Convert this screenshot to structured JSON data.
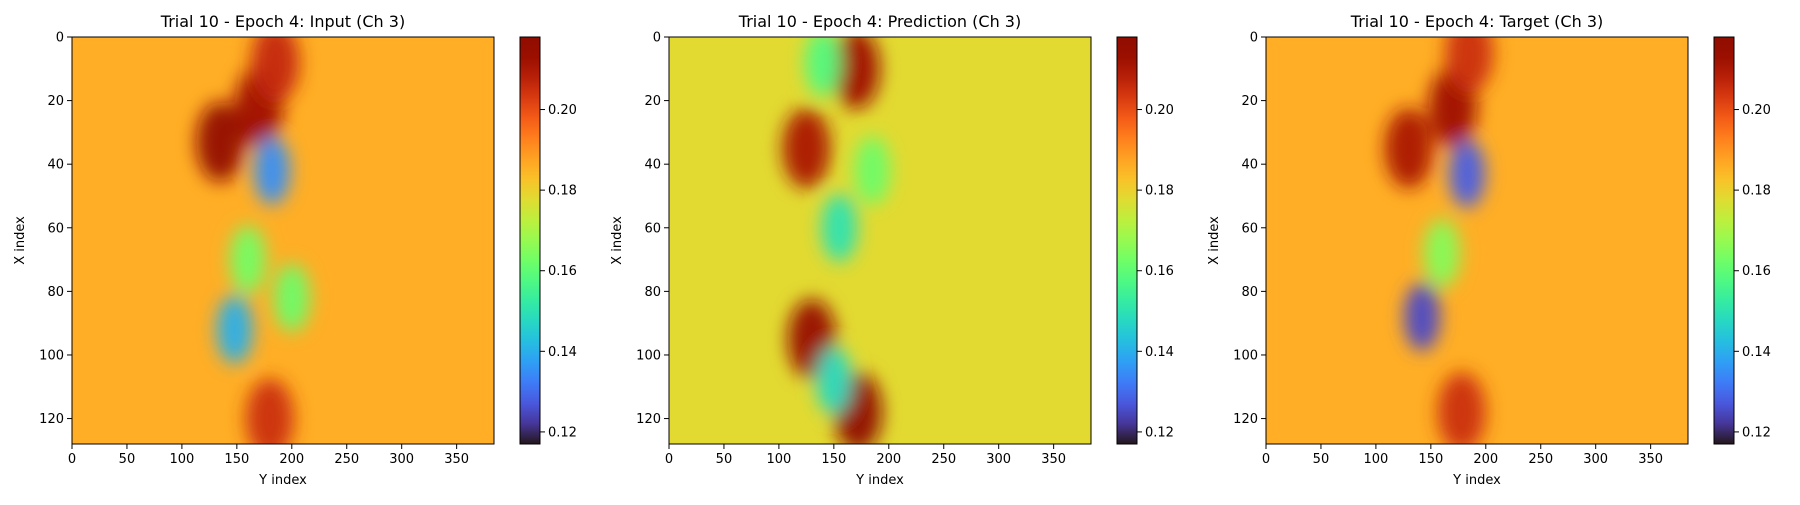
{
  "chart_data": [
    {
      "type": "heatmap",
      "title": "Trial 10 - Epoch 4: Input (Ch 3)",
      "xlabel": "Y index",
      "ylabel": "X index",
      "xticks": [
        0,
        50,
        100,
        150,
        200,
        250,
        300,
        350
      ],
      "yticks": [
        0,
        20,
        40,
        60,
        80,
        100,
        120
      ],
      "xlim": [
        0,
        384
      ],
      "ylim": [
        128,
        0
      ],
      "colormap": "turbo",
      "colorbar": {
        "min": 0.117,
        "max": 0.218,
        "ticks": [
          0.12,
          0.14,
          0.16,
          0.18,
          0.2
        ],
        "tick_labels": [
          "0.12",
          "0.14",
          "0.16",
          "0.18",
          "0.20"
        ]
      },
      "background_value": 0.186,
      "features": [
        {
          "kind": "high",
          "x": 170,
          "y": 22,
          "value": 0.212
        },
        {
          "kind": "high",
          "x": 135,
          "y": 33,
          "value": 0.215
        },
        {
          "kind": "high",
          "x": 185,
          "y": 8,
          "value": 0.206
        },
        {
          "kind": "high",
          "x": 180,
          "y": 120,
          "value": 0.205
        },
        {
          "kind": "low",
          "x": 182,
          "y": 42,
          "value": 0.135
        },
        {
          "kind": "low",
          "x": 148,
          "y": 92,
          "value": 0.14
        },
        {
          "kind": "low",
          "x": 160,
          "y": 70,
          "value": 0.163
        },
        {
          "kind": "low",
          "x": 200,
          "y": 82,
          "value": 0.162
        }
      ]
    },
    {
      "type": "heatmap",
      "title": "Trial 10 - Epoch 4: Prediction (Ch 3)",
      "xlabel": "Y index",
      "ylabel": "X index",
      "xticks": [
        0,
        50,
        100,
        150,
        200,
        250,
        300,
        350
      ],
      "yticks": [
        0,
        20,
        40,
        60,
        80,
        100,
        120
      ],
      "xlim": [
        0,
        384
      ],
      "ylim": [
        128,
        0
      ],
      "colormap": "turbo",
      "colorbar": {
        "min": 0.117,
        "max": 0.218,
        "ticks": [
          0.12,
          0.14,
          0.16,
          0.18,
          0.2
        ],
        "tick_labels": [
          "0.12",
          "0.14",
          "0.16",
          "0.18",
          "0.20"
        ]
      },
      "background_value": 0.178,
      "features": [
        {
          "kind": "high",
          "x": 125,
          "y": 35,
          "value": 0.21
        },
        {
          "kind": "high",
          "x": 170,
          "y": 10,
          "value": 0.212
        },
        {
          "kind": "high",
          "x": 130,
          "y": 95,
          "value": 0.214
        },
        {
          "kind": "high",
          "x": 172,
          "y": 118,
          "value": 0.218
        },
        {
          "kind": "low",
          "x": 155,
          "y": 60,
          "value": 0.15
        },
        {
          "kind": "low",
          "x": 140,
          "y": 8,
          "value": 0.158
        },
        {
          "kind": "low",
          "x": 150,
          "y": 108,
          "value": 0.148
        },
        {
          "kind": "low",
          "x": 185,
          "y": 42,
          "value": 0.162
        }
      ]
    },
    {
      "type": "heatmap",
      "title": "Trial 10 - Epoch 4: Target (Ch 3)",
      "xlabel": "Y index",
      "ylabel": "X index",
      "xticks": [
        0,
        50,
        100,
        150,
        200,
        250,
        300,
        350
      ],
      "yticks": [
        0,
        20,
        40,
        60,
        80,
        100,
        120
      ],
      "xlim": [
        0,
        384
      ],
      "ylim": [
        128,
        0
      ],
      "colormap": "turbo",
      "colorbar": {
        "min": 0.117,
        "max": 0.218,
        "ticks": [
          0.12,
          0.14,
          0.16,
          0.18,
          0.2
        ],
        "tick_labels": [
          "0.12",
          "0.14",
          "0.16",
          "0.18",
          "0.20"
        ]
      },
      "background_value": 0.186,
      "features": [
        {
          "kind": "high",
          "x": 170,
          "y": 22,
          "value": 0.212
        },
        {
          "kind": "high",
          "x": 130,
          "y": 35,
          "value": 0.21
        },
        {
          "kind": "high",
          "x": 185,
          "y": 5,
          "value": 0.205
        },
        {
          "kind": "high",
          "x": 178,
          "y": 118,
          "value": 0.205
        },
        {
          "kind": "low",
          "x": 183,
          "y": 43,
          "value": 0.128
        },
        {
          "kind": "low",
          "x": 142,
          "y": 88,
          "value": 0.125
        },
        {
          "kind": "low",
          "x": 160,
          "y": 68,
          "value": 0.165
        }
      ]
    }
  ]
}
